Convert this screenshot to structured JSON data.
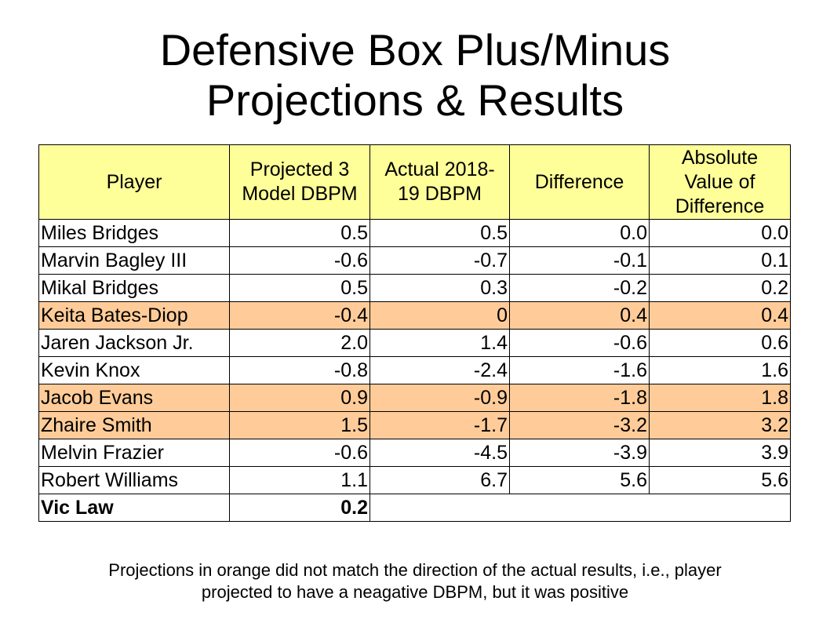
{
  "title_line1": "Defensive Box Plus/Minus",
  "title_line2": "Projections & Results",
  "footnote_line1": "Projections in orange did not match the direction of the actual results, i.e., player",
  "footnote_line2": "projected to have a neagative DBPM, but it was positive",
  "colors": {
    "header": "#ffff99",
    "mismatch": "#ffcc99"
  },
  "chart_data": {
    "type": "table",
    "columns": [
      "Player",
      "Projected 3 Model DBPM",
      "Actual 2018-19 DBPM",
      "Difference",
      "Absolute Value of Difference"
    ],
    "header_lines": [
      [
        "Player"
      ],
      [
        "Projected 3",
        "Model DBPM"
      ],
      [
        "Actual 2018-",
        "19 DBPM"
      ],
      [
        "Difference"
      ],
      [
        "Absolute",
        "Value of",
        "Difference"
      ]
    ],
    "rows": [
      {
        "player": "Miles Bridges",
        "projected": "0.5",
        "actual": "0.5",
        "difference": "0.0",
        "abs_difference": "0.0",
        "mismatch": false
      },
      {
        "player": "Marvin Bagley III",
        "projected": "-0.6",
        "actual": "-0.7",
        "difference": "-0.1",
        "abs_difference": "0.1",
        "mismatch": false
      },
      {
        "player": "Mikal Bridges",
        "projected": "0.5",
        "actual": "0.3",
        "difference": "-0.2",
        "abs_difference": "0.2",
        "mismatch": false
      },
      {
        "player": "Keita Bates-Diop",
        "projected": "-0.4",
        "actual": "0",
        "difference": "0.4",
        "abs_difference": "0.4",
        "mismatch": true
      },
      {
        "player": "Jaren Jackson Jr.",
        "projected": "2.0",
        "actual": "1.4",
        "difference": "-0.6",
        "abs_difference": "0.6",
        "mismatch": false
      },
      {
        "player": "Kevin Knox",
        "projected": "-0.8",
        "actual": "-2.4",
        "difference": "-1.6",
        "abs_difference": "1.6",
        "mismatch": false
      },
      {
        "player": "Jacob Evans",
        "projected": "0.9",
        "actual": "-0.9",
        "difference": "-1.8",
        "abs_difference": "1.8",
        "mismatch": true
      },
      {
        "player": "Zhaire Smith",
        "projected": "1.5",
        "actual": "-1.7",
        "difference": "-3.2",
        "abs_difference": "3.2",
        "mismatch": true
      },
      {
        "player": "Melvin Frazier",
        "projected": "-0.6",
        "actual": "-4.5",
        "difference": "-3.9",
        "abs_difference": "3.9",
        "mismatch": false
      },
      {
        "player": "Robert Williams",
        "projected": "1.1",
        "actual": "6.7",
        "difference": "5.6",
        "abs_difference": "5.6",
        "mismatch": false
      }
    ],
    "final_row": {
      "player": "Vic Law",
      "projected": "0.2"
    }
  }
}
